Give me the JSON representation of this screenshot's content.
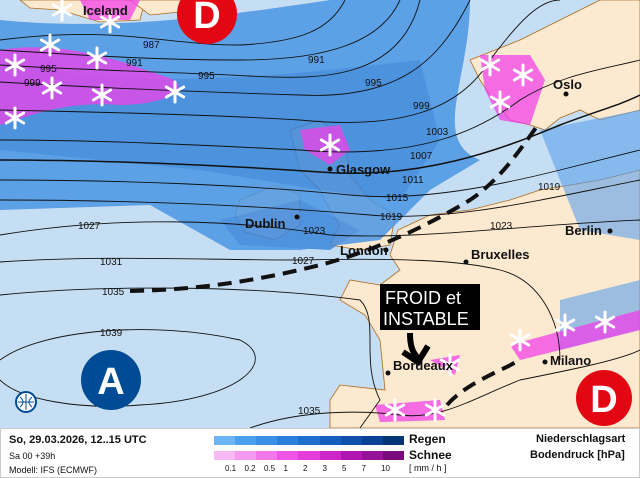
{
  "map": {
    "cities": {
      "iceland": "Iceland",
      "oslo": "Oslo",
      "glasgow": "Glasgow",
      "dublin": "Dublin",
      "london": "London",
      "bruxelles": "Bruxelles",
      "berlin": "Berlin",
      "milano": "Milano",
      "bordeaux": "Bordeaux"
    },
    "isobars": {
      "l987": "987",
      "l991a": "991",
      "l991b": "991",
      "l995a": "995",
      "l995b": "995",
      "l995c": "995",
      "l999a": "999",
      "l999b": "999",
      "l1003": "1003",
      "l1007": "1007",
      "l1011": "1011",
      "l1015": "1015",
      "l1019a": "1019",
      "l1019b": "1019",
      "l1023a": "1023",
      "l1023b": "1023",
      "l1027a": "1027",
      "l1027b": "1027",
      "l1031": "1031",
      "l1035a": "1035",
      "l1035b": "1035",
      "l1039": "1039"
    },
    "pressure_systems": {
      "low_north": "D",
      "low_south": "D",
      "high_west": "A"
    },
    "annotation": {
      "line1": "FROID et",
      "line2": "INSTABLE"
    },
    "colors": {
      "sea": "#c6def3",
      "land": "#fde9cf",
      "rain": "#3d8be0",
      "snow": "#f040e8",
      "low": "#e30613",
      "high": "#004b96"
    }
  },
  "footer": {
    "datetime": "So, 29.03.2026, 12..15 UTC",
    "run": "Sa 00 +39h",
    "model": "Modell: IFS (ECMWF)",
    "rain_label": "Regen",
    "snow_label": "Schnee",
    "unit": "[ mm / h ]",
    "ticks": [
      "0.1",
      "0.2",
      "0.5",
      "1",
      "2",
      "3",
      "5",
      "7",
      "10"
    ],
    "legend_right_1": "Niederschlagsart",
    "legend_right_2": "Bodendruck [hPa]",
    "rain_colors": [
      "#6bb5f5",
      "#4aa0ee",
      "#3a8fe6",
      "#2a7fdc",
      "#1f6fcf",
      "#155fbf",
      "#0f50aa",
      "#0a4395",
      "#063575"
    ],
    "snow_colors": [
      "#f8b8f3",
      "#f59af0",
      "#f278ec",
      "#ee55e6",
      "#e43ddc",
      "#cc26c8",
      "#b017b2",
      "#961299",
      "#7a0a7e"
    ]
  }
}
